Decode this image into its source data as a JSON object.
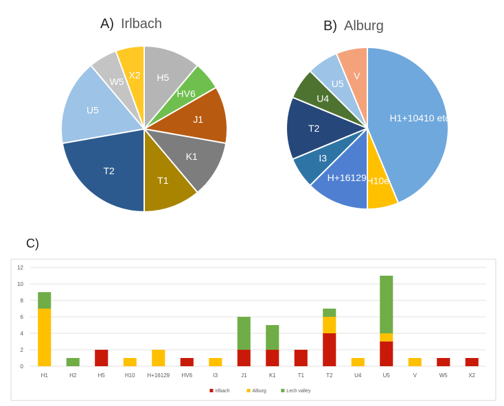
{
  "charts": [
    {
      "panel": "A)",
      "title": "Irlbach",
      "type": "pie",
      "slices": [
        {
          "label": "H5",
          "value": 2,
          "color": "#b5b5b5"
        },
        {
          "label": "HV6",
          "value": 1,
          "color": "#6fbf4e"
        },
        {
          "label": "J1",
          "value": 2,
          "color": "#b85a10"
        },
        {
          "label": "K1",
          "value": 2,
          "color": "#7d7d7d"
        },
        {
          "label": "T1",
          "value": 2,
          "color": "#a88400"
        },
        {
          "label": "T2",
          "value": 4,
          "color": "#2c5a8e"
        },
        {
          "label": "U5",
          "value": 3,
          "color": "#9dc3e6"
        },
        {
          "label": "W5",
          "value": 1,
          "color": "#c4c4c4"
        },
        {
          "label": "X2",
          "value": 1,
          "color": "#ffc824"
        }
      ]
    },
    {
      "panel": "B)",
      "title": "Alburg",
      "type": "pie",
      "slices": [
        {
          "label": "H1+10410 etc",
          "value": 7,
          "color": "#6fa8dc"
        },
        {
          "label": "H10e",
          "value": 1,
          "color": "#ffc000"
        },
        {
          "label": "H+16129",
          "value": 2,
          "color": "#4f7fd0"
        },
        {
          "label": "I3",
          "value": 1,
          "color": "#2e75a6"
        },
        {
          "label": "T2",
          "value": 2,
          "color": "#26477a"
        },
        {
          "label": "U4",
          "value": 1,
          "color": "#4e7330"
        },
        {
          "label": "U5",
          "value": 1,
          "color": "#9dc3e6"
        },
        {
          "label": "V",
          "value": 1,
          "color": "#f4a27a"
        }
      ]
    },
    {
      "panel": "C)",
      "type": "bar",
      "stacked": true,
      "categories": [
        "H1",
        "H2",
        "H5",
        "H10",
        "H+16129",
        "HV6",
        "I3",
        "J1",
        "K1",
        "T1",
        "T2",
        "U4",
        "U5",
        "V",
        "W5",
        "X2"
      ],
      "series": [
        {
          "name": "Irlbach",
          "color": "#c91a09",
          "values": [
            0,
            0,
            2,
            0,
            0,
            1,
            0,
            2,
            2,
            2,
            4,
            0,
            3,
            0,
            1,
            1
          ]
        },
        {
          "name": "Alburg",
          "color": "#ffc000",
          "values": [
            7,
            0,
            0,
            1,
            2,
            0,
            1,
            0,
            0,
            0,
            2,
            1,
            1,
            1,
            0,
            0
          ]
        },
        {
          "name": "Lech valley",
          "color": "#70ad47",
          "values": [
            2,
            1,
            0,
            0,
            0,
            0,
            0,
            4,
            3,
            0,
            1,
            0,
            7,
            0,
            0,
            0
          ]
        }
      ],
      "ylim": [
        0,
        12
      ],
      "yticks": [
        0,
        2,
        4,
        6,
        8,
        10,
        12
      ],
      "grid": true,
      "legend": "bottom"
    }
  ]
}
